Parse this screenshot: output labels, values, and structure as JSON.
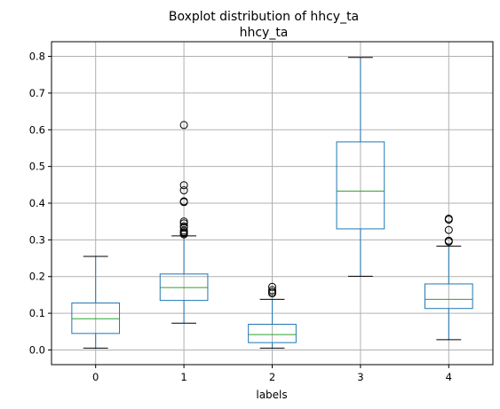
{
  "chart_data": {
    "type": "box",
    "title": "Boxplot distribution of hhcy_ta",
    "subtitle": "hhcy_ta",
    "xlabel": "labels",
    "ylabel": "",
    "ylim": [
      -0.04,
      0.84
    ],
    "yticks": [
      0.0,
      0.1,
      0.2,
      0.3,
      0.4,
      0.5,
      0.6,
      0.7,
      0.8
    ],
    "ytick_labels": [
      "0.0",
      "0.1",
      "0.2",
      "0.3",
      "0.4",
      "0.5",
      "0.6",
      "0.7",
      "0.8"
    ],
    "categories": [
      "0",
      "1",
      "2",
      "3",
      "4"
    ],
    "grid": true,
    "colors": {
      "box": "#1f77b4",
      "median": "#2ca02c",
      "whisker_cap": "#000000",
      "outlier": "#000000",
      "grid": "#b0b0b0"
    },
    "boxes": [
      {
        "label": "0",
        "whisker_low": 0.005,
        "q1": 0.045,
        "median": 0.085,
        "q3": 0.128,
        "whisker_high": 0.255,
        "outliers": []
      },
      {
        "label": "1",
        "whisker_low": 0.073,
        "q1": 0.135,
        "median": 0.17,
        "q3": 0.207,
        "whisker_high": 0.311,
        "outliers": [
          0.613,
          0.449,
          0.435,
          0.405,
          0.403,
          0.35,
          0.345,
          0.337,
          0.334,
          0.325,
          0.321,
          0.318,
          0.315
        ]
      },
      {
        "label": "2",
        "whisker_low": 0.005,
        "q1": 0.02,
        "median": 0.042,
        "q3": 0.07,
        "whisker_high": 0.138,
        "outliers": [
          0.172,
          0.163,
          0.158,
          0.154
        ]
      },
      {
        "label": "3",
        "whisker_low": 0.201,
        "q1": 0.33,
        "median": 0.433,
        "q3": 0.567,
        "whisker_high": 0.797,
        "outliers": []
      },
      {
        "label": "4",
        "whisker_low": 0.028,
        "q1": 0.113,
        "median": 0.138,
        "q3": 0.18,
        "whisker_high": 0.283,
        "outliers": [
          0.358,
          0.355,
          0.327,
          0.298,
          0.295
        ]
      }
    ]
  }
}
